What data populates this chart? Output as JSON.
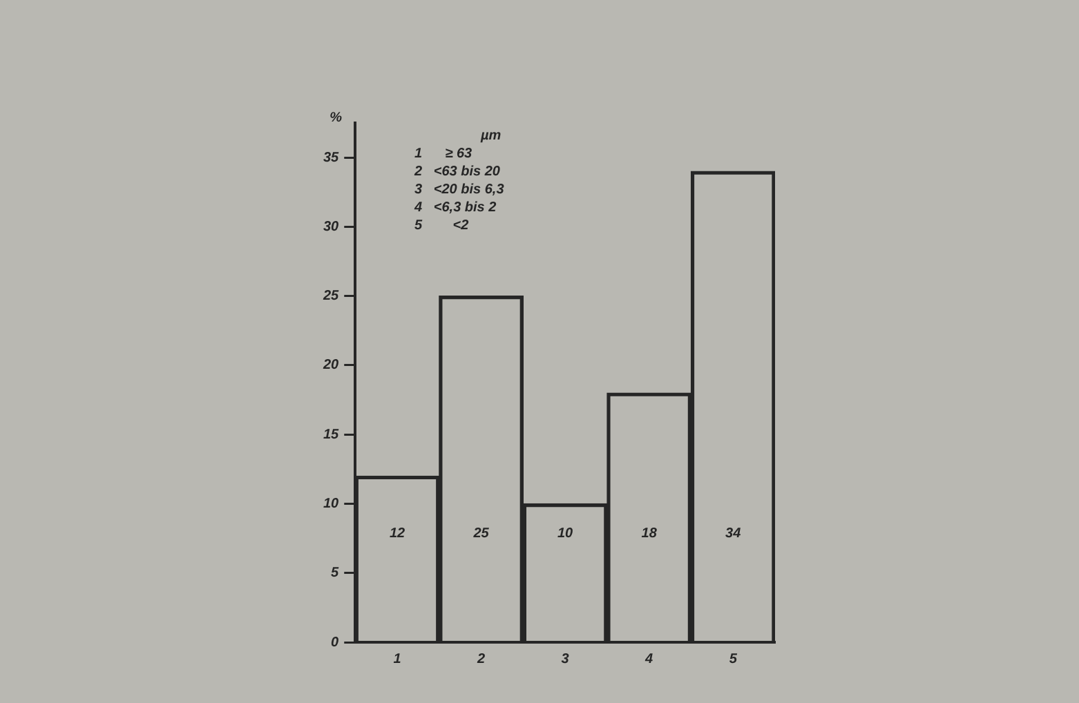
{
  "chart_data": {
    "type": "bar",
    "ylabel": "%",
    "categories": [
      "1",
      "2",
      "3",
      "4",
      "5"
    ],
    "values": [
      12,
      25,
      10,
      18,
      34
    ],
    "color": "#262626",
    "ylim": [
      0,
      37.5
    ],
    "yticks": [
      0,
      5,
      10,
      15,
      20,
      25,
      30,
      35
    ],
    "grid": false,
    "legend": false,
    "data_labels": true,
    "annotations": [
      "µm",
      "1      ≥ 63",
      "2   <63 bis 20",
      "3   <20 bis 6,3",
      "4   <6,3 bis 2",
      "5        <2"
    ]
  }
}
